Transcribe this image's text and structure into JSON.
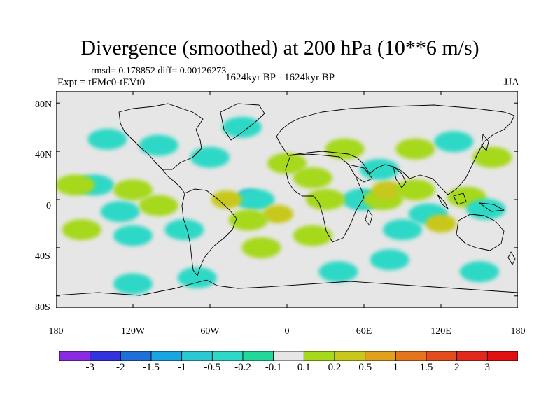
{
  "title": "Divergence (smoothed) at 200 hPa (10**6 m/s)",
  "stats_line": "rmsd= 0.178852 diff= 0.00126273",
  "experiment": "Expt = tFMc0-tEVt0",
  "period": "1624kyr BP - 1624kyr BP",
  "season": "JJA",
  "y_ticks": [
    "80N",
    "40N",
    "0",
    "40S",
    "80S"
  ],
  "x_ticks": [
    "180",
    "120W",
    "60W",
    "0",
    "60E",
    "120E",
    "180"
  ],
  "colorbar_labels": [
    "-3",
    "-2",
    "-1.5",
    "-1",
    "-0.5",
    "-0.2",
    "-0.1",
    "0.1",
    "0.2",
    "0.5",
    "1",
    "1.5",
    "2",
    "3"
  ],
  "colorbar_colors": [
    "#8a2be2",
    "#3333dd",
    "#1f6fd8",
    "#19a6e0",
    "#29c8d2",
    "#2ed8c6",
    "#22d898",
    "#e6e6e6",
    "#a6d81c",
    "#c8c81c",
    "#e0a11c",
    "#e3761c",
    "#e34c1c",
    "#e3281c",
    "#e01010"
  ],
  "chart_data": {
    "type": "heatmap",
    "title": "Divergence (smoothed) at 200 hPa (10**6 m/s)",
    "units": "10**6 m/s",
    "xlim": [
      -180,
      180
    ],
    "ylim": [
      -90,
      90
    ],
    "levels": [
      -3,
      -2,
      -1.5,
      -1,
      -0.5,
      -0.2,
      -0.1,
      0.1,
      0.2,
      0.5,
      1,
      1.5,
      2,
      3
    ],
    "blobs": [
      {
        "lon": -30,
        "lat": 2,
        "value": -1.0
      },
      {
        "lon": -25,
        "lat": 0,
        "value": -0.2
      },
      {
        "lon": -47,
        "lat": 0,
        "value": 0.5
      },
      {
        "lon": -7,
        "lat": -12,
        "value": 0.5
      },
      {
        "lon": -30,
        "lat": -17,
        "value": 0.2
      },
      {
        "lon": 0,
        "lat": 30,
        "value": 0.2
      },
      {
        "lon": 20,
        "lat": 18,
        "value": 0.2
      },
      {
        "lon": 60,
        "lat": 0,
        "value": -0.5
      },
      {
        "lon": 58,
        "lat": 0,
        "value": -0.2
      },
      {
        "lon": 75,
        "lat": 0,
        "value": 0.2
      },
      {
        "lon": 30,
        "lat": 0,
        "value": 0.2
      },
      {
        "lon": 78,
        "lat": 8,
        "value": 0.5
      },
      {
        "lon": 72,
        "lat": 25,
        "value": -0.2
      },
      {
        "lon": 100,
        "lat": 8,
        "value": 0.2
      },
      {
        "lon": 110,
        "lat": -12,
        "value": -0.2
      },
      {
        "lon": 140,
        "lat": 2,
        "value": 0.2
      },
      {
        "lon": 155,
        "lat": -8,
        "value": -0.2
      },
      {
        "lon": 120,
        "lat": -20,
        "value": 0.5
      },
      {
        "lon": 90,
        "lat": -25,
        "value": -0.2
      },
      {
        "lon": 130,
        "lat": 48,
        "value": -0.2
      },
      {
        "lon": 160,
        "lat": 35,
        "value": 0.2
      },
      {
        "lon": 100,
        "lat": 42,
        "value": 0.2
      },
      {
        "lon": 45,
        "lat": 42,
        "value": 0.2
      },
      {
        "lon": -150,
        "lat": 12,
        "value": -0.2
      },
      {
        "lon": -165,
        "lat": 12,
        "value": 0.2
      },
      {
        "lon": -120,
        "lat": 8,
        "value": 0.2
      },
      {
        "lon": -130,
        "lat": -10,
        "value": -0.2
      },
      {
        "lon": -100,
        "lat": -5,
        "value": 0.2
      },
      {
        "lon": -160,
        "lat": -25,
        "value": 0.2
      },
      {
        "lon": -120,
        "lat": -30,
        "value": -0.2
      },
      {
        "lon": -80,
        "lat": -25,
        "value": -0.2
      },
      {
        "lon": -100,
        "lat": 45,
        "value": -0.2
      },
      {
        "lon": -60,
        "lat": 35,
        "value": -0.2
      },
      {
        "lon": -35,
        "lat": 60,
        "value": -0.2
      },
      {
        "lon": -140,
        "lat": 50,
        "value": -0.2
      },
      {
        "lon": -120,
        "lat": -70,
        "value": -0.2
      },
      {
        "lon": -70,
        "lat": -65,
        "value": -0.2
      },
      {
        "lon": 40,
        "lat": -60,
        "value": -0.2
      },
      {
        "lon": 80,
        "lat": -50,
        "value": -0.2
      },
      {
        "lon": 150,
        "lat": -60,
        "value": -0.2
      },
      {
        "lon": -20,
        "lat": -40,
        "value": 0.2
      },
      {
        "lon": 20,
        "lat": -30,
        "value": 0.2
      }
    ]
  }
}
